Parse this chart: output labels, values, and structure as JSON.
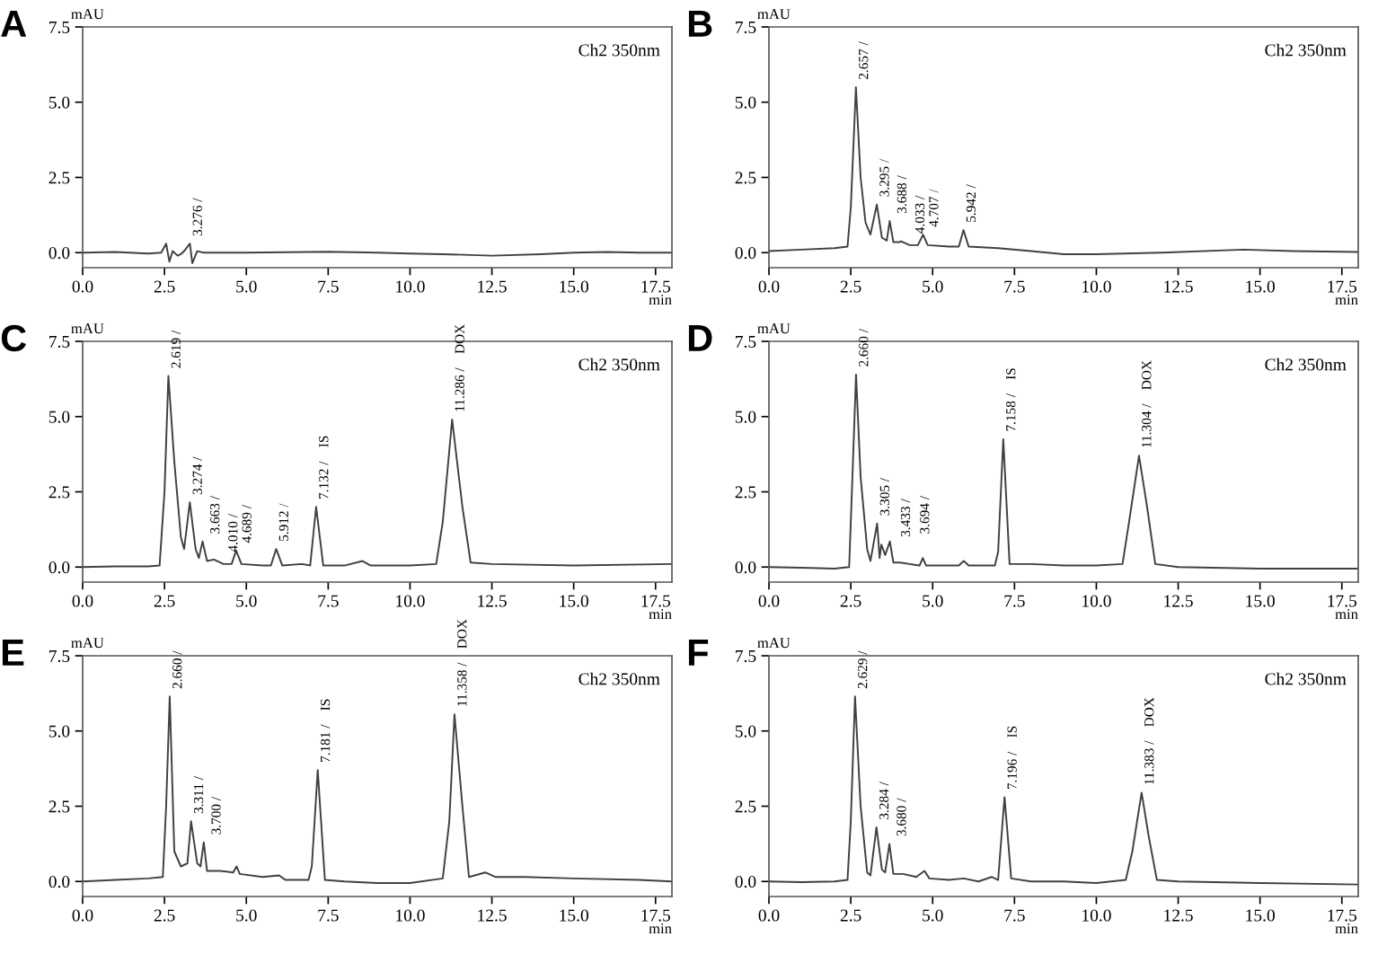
{
  "chart_data": [
    {
      "type": "line",
      "title": "A",
      "ylabel": "mAU",
      "xlabel": "min",
      "xlim": [
        0,
        18
      ],
      "ylim": [
        -0.5,
        7.5
      ],
      "grid": false,
      "legend": false,
      "xticks": [
        {
          "value": 0,
          "label": "0.0"
        },
        {
          "value": 2.5,
          "label": "2.5"
        },
        {
          "value": 5,
          "label": "5.0"
        },
        {
          "value": 7.5,
          "label": "7.5"
        },
        {
          "value": 10,
          "label": "10.0"
        },
        {
          "value": 12.5,
          "label": "12.5"
        },
        {
          "value": 15,
          "label": "15.0"
        },
        {
          "value": 17.5,
          "label": "17.5"
        }
      ],
      "yticks": [
        {
          "value": 0,
          "label": "0.0"
        },
        {
          "value": 2.5,
          "label": "2.5"
        },
        {
          "value": 5,
          "label": "5.0"
        },
        {
          "value": 7.5,
          "label": "7.5"
        }
      ],
      "series": [
        {
          "color": "#404040",
          "x": [
            0,
            1,
            2,
            2.4,
            2.55,
            2.65,
            2.75,
            2.9,
            3.0,
            3.1,
            3.276,
            3.35,
            3.5,
            3.7,
            5,
            7.5,
            9,
            10,
            11,
            12.5,
            14,
            15,
            16,
            17,
            18
          ],
          "values": [
            0,
            0.02,
            -0.03,
            0,
            0.3,
            -0.3,
            0.05,
            -0.1,
            -0.05,
            0.05,
            0.3,
            -0.35,
            0.05,
            0,
            0,
            0.03,
            0,
            -0.03,
            -0.05,
            -0.1,
            -0.05,
            0,
            0.02,
            0,
            0
          ]
        }
      ],
      "annotations": [
        "Ch2 350nm",
        {
          "text": "3.276 /",
          "x": 3.276,
          "y": 0.3
        }
      ]
    },
    {
      "type": "line",
      "title": "B",
      "ylabel": "mAU",
      "xlabel": "min",
      "xlim": [
        0,
        18
      ],
      "ylim": [
        -0.5,
        7.5
      ],
      "grid": false,
      "legend": false,
      "xticks": [
        {
          "value": 0,
          "label": "0.0"
        },
        {
          "value": 2.5,
          "label": "2.5"
        },
        {
          "value": 5,
          "label": "5.0"
        },
        {
          "value": 7.5,
          "label": "7.5"
        },
        {
          "value": 10,
          "label": "10.0"
        },
        {
          "value": 12.5,
          "label": "12.5"
        },
        {
          "value": 15,
          "label": "15.0"
        },
        {
          "value": 17.5,
          "label": "17.5"
        }
      ],
      "yticks": [
        {
          "value": 0,
          "label": "0.0"
        },
        {
          "value": 2.5,
          "label": "2.5"
        },
        {
          "value": 5,
          "label": "5.0"
        },
        {
          "value": 7.5,
          "label": "7.5"
        }
      ],
      "series": [
        {
          "color": "#404040",
          "x": [
            0,
            1,
            2,
            2.4,
            2.5,
            2.657,
            2.8,
            2.95,
            3.1,
            3.295,
            3.45,
            3.6,
            3.688,
            3.8,
            4.0,
            4.033,
            4.3,
            4.55,
            4.707,
            4.85,
            5.5,
            5.8,
            5.942,
            6.1,
            7,
            8,
            9,
            10,
            12,
            14.5,
            16,
            18
          ],
          "values": [
            0.05,
            0.1,
            0.15,
            0.2,
            1.5,
            5.5,
            2.5,
            1.0,
            0.6,
            1.6,
            0.5,
            0.4,
            1.05,
            0.35,
            0.35,
            0.38,
            0.25,
            0.25,
            0.6,
            0.25,
            0.2,
            0.2,
            0.75,
            0.2,
            0.15,
            0.05,
            -0.05,
            -0.05,
            0,
            0.1,
            0.05,
            0.02
          ]
        }
      ],
      "annotations": [
        "Ch2 350nm",
        {
          "text": "2.657 /",
          "x": 2.657,
          "y": 5.5
        },
        {
          "text": "3.295 /",
          "x": 3.295,
          "y": 1.6
        },
        {
          "text": "3.688 /",
          "x": 3.688,
          "y": 1.05
        },
        {
          "text": "4.033 /",
          "x": 4.033,
          "y": 0.38
        },
        {
          "text": "4.707 /",
          "x": 4.707,
          "y": 0.6
        },
        {
          "text": "5.942 /",
          "x": 5.942,
          "y": 0.75
        }
      ]
    },
    {
      "type": "line",
      "title": "C",
      "ylabel": "mAU",
      "xlabel": "min",
      "xlim": [
        0,
        18
      ],
      "ylim": [
        -0.5,
        7.5
      ],
      "grid": false,
      "legend": false,
      "xticks": [
        {
          "value": 0,
          "label": "0.0"
        },
        {
          "value": 2.5,
          "label": "2.5"
        },
        {
          "value": 5,
          "label": "5.0"
        },
        {
          "value": 7.5,
          "label": "7.5"
        },
        {
          "value": 10,
          "label": "10.0"
        },
        {
          "value": 12.5,
          "label": "12.5"
        },
        {
          "value": 15,
          "label": "15.0"
        },
        {
          "value": 17.5,
          "label": "17.5"
        }
      ],
      "yticks": [
        {
          "value": 0,
          "label": "0.0"
        },
        {
          "value": 2.5,
          "label": "2.5"
        },
        {
          "value": 5,
          "label": "5.0"
        },
        {
          "value": 7.5,
          "label": "7.5"
        }
      ],
      "series": [
        {
          "color": "#404040",
          "x": [
            0,
            1,
            2,
            2.35,
            2.5,
            2.619,
            2.8,
            3.0,
            3.1,
            3.274,
            3.45,
            3.55,
            3.663,
            3.8,
            4.01,
            4.3,
            4.55,
            4.689,
            4.85,
            5.5,
            5.75,
            5.912,
            6.1,
            6.7,
            6.95,
            7.132,
            7.35,
            8,
            8.55,
            8.8,
            10,
            10.8,
            11.0,
            11.286,
            11.6,
            11.85,
            12.5,
            15,
            18
          ],
          "values": [
            0,
            0.02,
            0.02,
            0.05,
            2.5,
            6.35,
            3.5,
            1.0,
            0.6,
            2.15,
            0.6,
            0.3,
            0.85,
            0.2,
            0.25,
            0.1,
            0.1,
            0.55,
            0.1,
            0.05,
            0.05,
            0.6,
            0.05,
            0.1,
            0.05,
            2.0,
            0.05,
            0.05,
            0.2,
            0.05,
            0.05,
            0.1,
            1.5,
            4.9,
            2.0,
            0.15,
            0.1,
            0.05,
            0.1
          ]
        }
      ],
      "annotations": [
        "Ch2 350nm",
        {
          "text": "2.619 /",
          "x": 2.619,
          "y": 6.35
        },
        {
          "text": "3.274 /",
          "x": 3.274,
          "y": 2.15
        },
        {
          "text": "3.663 /",
          "x": 3.663,
          "y": 0.85
        },
        {
          "text": "4.010 /",
          "x": 4.01,
          "y": 0.25
        },
        {
          "text": "4.689 /",
          "x": 4.689,
          "y": 0.55
        },
        {
          "text": "5.912 /",
          "x": 5.912,
          "y": 0.6
        },
        {
          "text": "7.132 /    IS",
          "x": 7.132,
          "y": 2.0
        },
        {
          "text": "11.286 /    DOX",
          "x": 11.286,
          "y": 4.9
        }
      ]
    },
    {
      "type": "line",
      "title": "D",
      "ylabel": "mAU",
      "xlabel": "min",
      "xlim": [
        0,
        18
      ],
      "ylim": [
        -0.5,
        7.5
      ],
      "grid": false,
      "legend": false,
      "xticks": [
        {
          "value": 0,
          "label": "0.0"
        },
        {
          "value": 2.5,
          "label": "2.5"
        },
        {
          "value": 5,
          "label": "5.0"
        },
        {
          "value": 7.5,
          "label": "7.5"
        },
        {
          "value": 10,
          "label": "10.0"
        },
        {
          "value": 12.5,
          "label": "12.5"
        },
        {
          "value": 15,
          "label": "15.0"
        },
        {
          "value": 17.5,
          "label": "17.5"
        }
      ],
      "yticks": [
        {
          "value": 0,
          "label": "0.0"
        },
        {
          "value": 2.5,
          "label": "2.5"
        },
        {
          "value": 5,
          "label": "5.0"
        },
        {
          "value": 7.5,
          "label": "7.5"
        }
      ],
      "series": [
        {
          "color": "#404040",
          "x": [
            0,
            1,
            2,
            2.45,
            2.55,
            2.66,
            2.8,
            3.0,
            3.1,
            3.305,
            3.38,
            3.433,
            3.55,
            3.694,
            3.8,
            4.0,
            4.3,
            4.6,
            4.7,
            4.8,
            5.5,
            5.8,
            5.95,
            6.1,
            6.9,
            7.0,
            7.158,
            7.35,
            8,
            9,
            10,
            10.8,
            11.0,
            11.304,
            11.55,
            11.8,
            12.5,
            15,
            18
          ],
          "values": [
            0,
            -0.02,
            -0.05,
            0,
            3.0,
            6.4,
            3.0,
            0.6,
            0.2,
            1.45,
            0.3,
            0.75,
            0.4,
            0.85,
            0.15,
            0.15,
            0.1,
            0.05,
            0.3,
            0.05,
            0.05,
            0.05,
            0.2,
            0.05,
            0.05,
            0.5,
            4.25,
            0.1,
            0.1,
            0.05,
            0.05,
            0.1,
            1.5,
            3.7,
            2.0,
            0.1,
            0,
            -0.05,
            -0.05
          ]
        }
      ],
      "annotations": [
        "Ch2 350nm",
        {
          "text": "2.660 /",
          "x": 2.66,
          "y": 6.4
        },
        {
          "text": "3.305 /",
          "x": 3.305,
          "y": 1.45
        },
        {
          "text": "3.433 /",
          "x": 3.433,
          "y": 0.75
        },
        {
          "text": "3.694 /",
          "x": 3.694,
          "y": 0.85
        },
        {
          "text": "7.158 /    IS",
          "x": 7.158,
          "y": 4.25
        },
        {
          "text": "11.304 /    DOX",
          "x": 11.304,
          "y": 3.7
        }
      ]
    },
    {
      "type": "line",
      "title": "E",
      "ylabel": "mAU",
      "xlabel": "min",
      "xlim": [
        0,
        18
      ],
      "ylim": [
        -0.5,
        7.5
      ],
      "grid": false,
      "legend": false,
      "xticks": [
        {
          "value": 0,
          "label": "0.0"
        },
        {
          "value": 2.5,
          "label": "2.5"
        },
        {
          "value": 5,
          "label": "5.0"
        },
        {
          "value": 7.5,
          "label": "7.5"
        },
        {
          "value": 10,
          "label": "10.0"
        },
        {
          "value": 12.5,
          "label": "12.5"
        },
        {
          "value": 15,
          "label": "15.0"
        },
        {
          "value": 17.5,
          "label": "17.5"
        }
      ],
      "yticks": [
        {
          "value": 0,
          "label": "0.0"
        },
        {
          "value": 2.5,
          "label": "2.5"
        },
        {
          "value": 5,
          "label": "5.0"
        },
        {
          "value": 7.5,
          "label": "7.5"
        }
      ],
      "series": [
        {
          "color": "#404040",
          "x": [
            0,
            1,
            2,
            2.45,
            2.55,
            2.66,
            2.8,
            3.0,
            3.2,
            3.311,
            3.5,
            3.6,
            3.7,
            3.8,
            4.2,
            4.6,
            4.7,
            4.8,
            5.5,
            6.0,
            6.2,
            6.9,
            7.0,
            7.181,
            7.4,
            8,
            9,
            10,
            11.0,
            11.2,
            11.358,
            11.6,
            11.8,
            12.3,
            12.6,
            13.5,
            15,
            17,
            18
          ],
          "values": [
            0,
            0.05,
            0.1,
            0.15,
            2.5,
            6.15,
            1.0,
            0.5,
            0.6,
            2.0,
            0.6,
            0.5,
            1.3,
            0.35,
            0.35,
            0.3,
            0.5,
            0.25,
            0.15,
            0.2,
            0.05,
            0.05,
            0.5,
            3.7,
            0.05,
            0,
            -0.05,
            -0.05,
            0.1,
            2.0,
            5.55,
            2.5,
            0.15,
            0.3,
            0.15,
            0.15,
            0.1,
            0.05,
            0
          ]
        }
      ],
      "annotations": [
        "Ch2 350nm",
        {
          "text": "2.660 /",
          "x": 2.66,
          "y": 6.15
        },
        {
          "text": "3.311 /",
          "x": 3.311,
          "y": 2.0
        },
        {
          "text": "3.700 /",
          "x": 3.7,
          "y": 1.3
        },
        {
          "text": "7.181 /    IS",
          "x": 7.181,
          "y": 3.7
        },
        {
          "text": "11.358 /    DOX",
          "x": 11.358,
          "y": 5.55
        }
      ]
    },
    {
      "type": "line",
      "title": "F",
      "ylabel": "mAU",
      "xlabel": "min",
      "xlim": [
        0,
        18
      ],
      "ylim": [
        -0.5,
        7.5
      ],
      "grid": false,
      "legend": false,
      "xticks": [
        {
          "value": 0,
          "label": "0.0"
        },
        {
          "value": 2.5,
          "label": "2.5"
        },
        {
          "value": 5,
          "label": "5.0"
        },
        {
          "value": 7.5,
          "label": "7.5"
        },
        {
          "value": 10,
          "label": "10.0"
        },
        {
          "value": 12.5,
          "label": "12.5"
        },
        {
          "value": 15,
          "label": "15.0"
        },
        {
          "value": 17.5,
          "label": "17.5"
        }
      ],
      "yticks": [
        {
          "value": 0,
          "label": "0.0"
        },
        {
          "value": 2.5,
          "label": "2.5"
        },
        {
          "value": 5,
          "label": "5.0"
        },
        {
          "value": 7.5,
          "label": "7.5"
        }
      ],
      "series": [
        {
          "color": "#404040",
          "x": [
            0,
            1,
            2,
            2.4,
            2.5,
            2.629,
            2.8,
            3.0,
            3.1,
            3.284,
            3.45,
            3.55,
            3.68,
            3.8,
            4.1,
            4.5,
            4.75,
            4.9,
            5.5,
            5.95,
            6.4,
            6.8,
            7.0,
            7.196,
            7.4,
            8,
            9,
            10,
            10.9,
            11.1,
            11.383,
            11.6,
            11.85,
            12.5,
            15,
            18
          ],
          "values": [
            0,
            -0.02,
            0,
            0.05,
            2.0,
            6.15,
            2.5,
            0.3,
            0.2,
            1.8,
            0.4,
            0.3,
            1.25,
            0.25,
            0.25,
            0.15,
            0.35,
            0.1,
            0.05,
            0.1,
            0,
            0.15,
            0.05,
            2.8,
            0.1,
            0,
            0,
            -0.05,
            0.05,
            1.0,
            2.95,
            1.5,
            0.05,
            0,
            -0.05,
            -0.1
          ]
        }
      ],
      "annotations": [
        "Ch2 350nm",
        {
          "text": "2.629 /",
          "x": 2.629,
          "y": 6.15
        },
        {
          "text": "3.284 /",
          "x": 3.284,
          "y": 1.8
        },
        {
          "text": "3.680 /",
          "x": 3.68,
          "y": 1.25
        },
        {
          "text": "7.196 /    IS",
          "x": 7.196,
          "y": 2.8
        },
        {
          "text": "11.383 /    DOX",
          "x": 11.383,
          "y": 2.95
        }
      ]
    }
  ]
}
